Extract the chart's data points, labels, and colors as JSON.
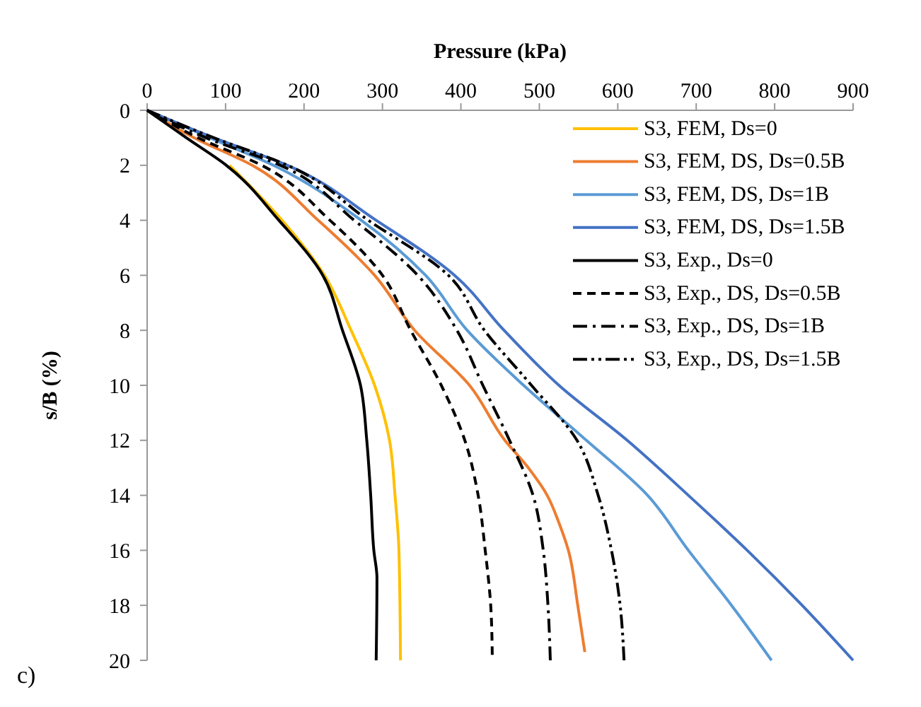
{
  "chart_data": {
    "type": "line",
    "xlabel": "Pressure (kPa)",
    "ylabel": "s/B (%)",
    "xlim": [
      0,
      900
    ],
    "xticks": [
      0,
      100,
      200,
      300,
      400,
      500,
      600,
      700,
      800,
      900
    ],
    "ylim": [
      20,
      0
    ],
    "yticks": [
      0,
      2,
      4,
      6,
      8,
      10,
      12,
      14,
      16,
      18,
      20
    ],
    "grid": false,
    "legend": "top right",
    "marker": "none",
    "annotations": [
      "c)"
    ],
    "series": [
      {
        "name": "S3, FEM, Ds=0",
        "color": "#ffc000",
        "line_style": "solid",
        "x": [
          105,
          172,
          226,
          260,
          290,
          309,
          316,
          321,
          323
        ],
        "values": [
          2,
          4,
          6,
          8,
          10,
          12,
          14,
          16,
          20
        ]
      },
      {
        "name": "S3, FEM, DS, Ds=0.5B",
        "color": "#ed7d31",
        "line_style": "solid",
        "x": [
          0,
          60,
          134,
          218,
          290,
          341,
          411,
          456,
          486,
          510,
          525,
          537,
          549,
          558
        ],
        "values": [
          0,
          1,
          2,
          4,
          6,
          8,
          10,
          12,
          13,
          14,
          15,
          16,
          18,
          19.7
        ]
      },
      {
        "name": "S3, FEM, DS, Ds=1B",
        "color": "#5b9bd5",
        "line_style": "solid",
        "x": [
          0,
          80,
          161,
          273,
          355,
          408,
          480,
          560,
          638,
          690,
          745,
          796
        ],
        "values": [
          0,
          1,
          2,
          4,
          6,
          8,
          10,
          12,
          14,
          16,
          18,
          20
        ]
      },
      {
        "name": "S3, FEM, DS, Ds=1.5B",
        "color": "#4472c4",
        "line_style": "solid",
        "x": [
          0,
          85,
          179,
          292,
          392,
          455,
          525,
          612,
          690,
          765,
          835,
          900
        ],
        "values": [
          0,
          1,
          2,
          4,
          6,
          8,
          10,
          12,
          14,
          16,
          18,
          20
        ]
      },
      {
        "name": "S3, Exp., Ds=0",
        "color": "#000000",
        "line_style": "solid",
        "x": [
          0,
          50,
          101,
          168,
          224,
          249,
          272,
          280,
          285,
          289,
          293,
          292
        ],
        "values": [
          0,
          1,
          2,
          4,
          6,
          8,
          10,
          12,
          14,
          16,
          17,
          20
        ]
      },
      {
        "name": "S3, Exp., DS, Ds=0.5B",
        "color": "#000000",
        "line_style": "dashed",
        "x": [
          0,
          65,
          146,
          233,
          300,
          336,
          375,
          405,
          422,
          431,
          438,
          440
        ],
        "values": [
          0,
          1,
          2,
          4,
          6,
          8,
          10,
          12,
          14,
          16,
          18,
          19.8
        ]
      },
      {
        "name": "S3, Exp., DS, Ds=1B",
        "color": "#000000",
        "line_style": "dashdot",
        "x": [
          0,
          75,
          170,
          264,
          345,
          395,
          428,
          462,
          492,
          505,
          511,
          514
        ],
        "values": [
          0,
          1,
          2,
          4,
          6,
          8,
          10,
          12,
          14,
          16,
          18,
          20
        ]
      },
      {
        "name": "S3, Exp., DS, Ds=1.5B",
        "color": "#000000",
        "line_style": "dashdotdot",
        "x": [
          0,
          85,
          179,
          282,
          384,
          430,
          490,
          548,
          575,
          592,
          603,
          608
        ],
        "values": [
          0,
          1,
          2,
          4,
          6,
          8,
          10,
          12,
          14,
          16,
          18,
          20
        ]
      }
    ]
  }
}
